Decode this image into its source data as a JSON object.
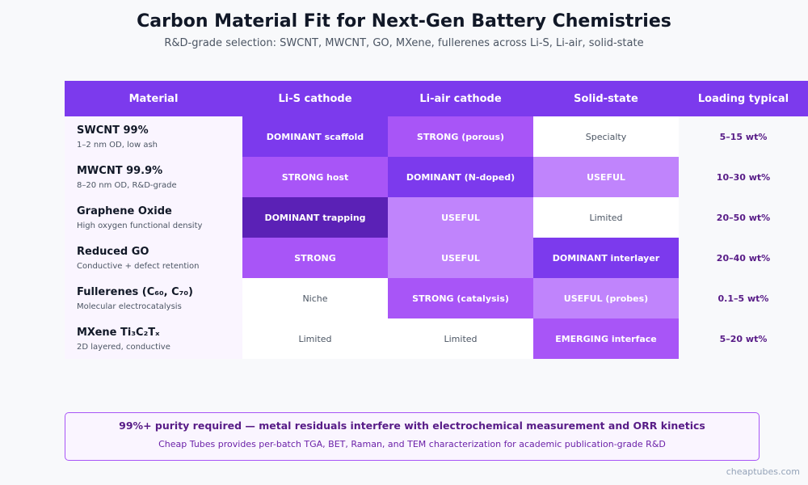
{
  "title": "Carbon Material Fit for Next-Gen Battery Chemistries",
  "subtitle": "R&D-grade selection: SWCNT, MWCNT, GO, MXene, fullerenes across Li-S, Li-air, solid-state",
  "colors": {
    "header": "#7c3aed",
    "dominant": "#7c3aed",
    "dominant_dark": "#5b21b6",
    "strong": "#a855f7",
    "useful": "#c084fc",
    "plain": "#ffffff",
    "material_bg": "#faf5ff"
  },
  "chart_data": {
    "type": "table",
    "columns": [
      "Material",
      "Li-S cathode",
      "Li-air cathode",
      "Solid-state",
      "Loading typical"
    ],
    "rows": [
      {
        "name": "SWCNT 99%",
        "sub": "1–2 nm OD, low ash",
        "lis": "DOMINANT scaffold",
        "lis_level": "dominant",
        "liair": "STRONG (porous)",
        "liair_level": "strong",
        "solid": "Specialty",
        "solid_level": "plain",
        "loading": "5–15 wt%"
      },
      {
        "name": "MWCNT 99.9%",
        "sub": "8–20 nm OD, R&D-grade",
        "lis": "STRONG host",
        "lis_level": "strong",
        "liair": "DOMINANT (N-doped)",
        "liair_level": "dominant",
        "solid": "USEFUL",
        "solid_level": "useful",
        "loading": "10–30 wt%"
      },
      {
        "name": "Graphene Oxide",
        "sub": "High oxygen functional density",
        "lis": "DOMINANT trapping",
        "lis_level": "dominant_dark",
        "liair": "USEFUL",
        "liair_level": "useful",
        "solid": "Limited",
        "solid_level": "plain",
        "loading": "20–50 wt%"
      },
      {
        "name": "Reduced GO",
        "sub": "Conductive + defect retention",
        "lis": "STRONG",
        "lis_level": "strong",
        "liair": "USEFUL",
        "liair_level": "useful",
        "solid": "DOMINANT interlayer",
        "solid_level": "dominant",
        "loading": "20–40 wt%"
      },
      {
        "name": "Fullerenes (C₆₀, C₇₀)",
        "sub": "Molecular electrocatalysis",
        "lis": "Niche",
        "lis_level": "plain",
        "liair": "STRONG (catalysis)",
        "liair_level": "strong",
        "solid": "USEFUL (probes)",
        "solid_level": "useful",
        "loading": "0.1–5 wt%"
      },
      {
        "name": "MXene Ti₃C₂Tₓ",
        "sub": "2D layered, conductive",
        "lis": "Limited",
        "lis_level": "plain",
        "liair": "Limited",
        "liair_level": "plain",
        "solid": "EMERGING interface",
        "solid_level": "strong",
        "loading": "5–20 wt%"
      }
    ]
  },
  "footer": {
    "main": "99%+ purity required — metal residuals interfere with electrochemical measurement and ORR kinetics",
    "sub": "Cheap Tubes provides per-batch TGA, BET, Raman, and TEM characterization for academic publication-grade R&D"
  },
  "brand": "cheaptubes.com"
}
